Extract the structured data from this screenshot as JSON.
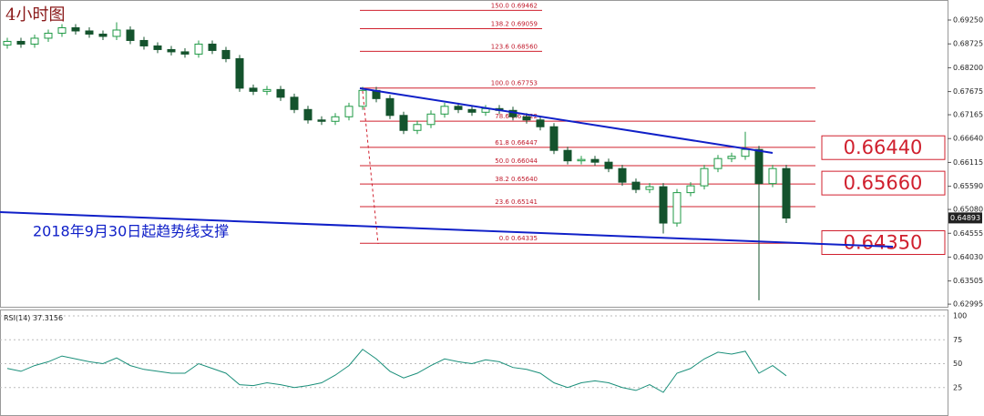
{
  "chart_data": {
    "type": "candlestick",
    "title": "4小时图",
    "annotation": "2018年9月30日起趋势线支撑",
    "open": [
      0.687,
      0.6878,
      0.6872,
      0.6885,
      0.6896,
      0.6908,
      0.6901,
      0.6894,
      0.6889,
      0.6903,
      0.688,
      0.6868,
      0.686,
      0.6855,
      0.685,
      0.6872,
      0.6858,
      0.684,
      0.6775,
      0.6768,
      0.6772,
      0.6755,
      0.6728,
      0.6705,
      0.6702,
      0.6712,
      0.6735,
      0.677,
      0.6752,
      0.6715,
      0.6682,
      0.6695,
      0.6718,
      0.6735,
      0.6728,
      0.6722,
      0.673,
      0.6726,
      0.6712,
      0.6705,
      0.669,
      0.6638,
      0.6615,
      0.6618,
      0.6612,
      0.6598,
      0.6568,
      0.6552,
      0.6558,
      0.6478,
      0.6545,
      0.656,
      0.6598,
      0.662,
      0.6625,
      0.664,
      0.6565,
      0.6598
    ],
    "high": [
      0.6886,
      0.6886,
      0.6893,
      0.6904,
      0.6916,
      0.6916,
      0.6909,
      0.6902,
      0.692,
      0.6911,
      0.6888,
      0.6876,
      0.6868,
      0.6863,
      0.688,
      0.688,
      0.6866,
      0.6848,
      0.6783,
      0.678,
      0.678,
      0.6763,
      0.6736,
      0.6713,
      0.672,
      0.6743,
      0.6778,
      0.6778,
      0.676,
      0.6723,
      0.6703,
      0.6726,
      0.6743,
      0.6743,
      0.6736,
      0.6738,
      0.6738,
      0.6734,
      0.672,
      0.6713,
      0.6698,
      0.6646,
      0.6626,
      0.6626,
      0.662,
      0.6606,
      0.6576,
      0.6566,
      0.6566,
      0.6553,
      0.6568,
      0.6606,
      0.6628,
      0.6633,
      0.6679,
      0.6648,
      0.6606,
      0.6606
    ],
    "low": [
      0.6862,
      0.6864,
      0.6864,
      0.6877,
      0.6888,
      0.6893,
      0.6886,
      0.6881,
      0.6881,
      0.6872,
      0.686,
      0.6852,
      0.6847,
      0.6842,
      0.6842,
      0.685,
      0.6832,
      0.6767,
      0.676,
      0.676,
      0.6747,
      0.672,
      0.6697,
      0.6694,
      0.6694,
      0.6704,
      0.6727,
      0.6744,
      0.6707,
      0.6674,
      0.6674,
      0.6687,
      0.671,
      0.672,
      0.6714,
      0.6714,
      0.6718,
      0.6704,
      0.6697,
      0.6682,
      0.663,
      0.6607,
      0.6607,
      0.6604,
      0.659,
      0.656,
      0.6544,
      0.6544,
      0.6455,
      0.647,
      0.6537,
      0.6552,
      0.659,
      0.6612,
      0.6617,
      0.6308,
      0.6557,
      0.6478
    ],
    "close": [
      0.6878,
      0.6872,
      0.6885,
      0.6896,
      0.6908,
      0.6901,
      0.6894,
      0.6889,
      0.6903,
      0.688,
      0.6868,
      0.686,
      0.6855,
      0.685,
      0.6872,
      0.6858,
      0.684,
      0.6775,
      0.6768,
      0.6772,
      0.6755,
      0.6728,
      0.6705,
      0.6702,
      0.6712,
      0.6735,
      0.677,
      0.6752,
      0.6715,
      0.6682,
      0.6695,
      0.6718,
      0.6735,
      0.6728,
      0.6722,
      0.673,
      0.6726,
      0.6712,
      0.6705,
      0.669,
      0.6638,
      0.6615,
      0.6618,
      0.6612,
      0.6598,
      0.6568,
      0.6552,
      0.6558,
      0.6478,
      0.6545,
      0.656,
      0.6598,
      0.662,
      0.6625,
      0.664,
      0.6565,
      0.6598,
      0.6489
    ],
    "up_color": "#1f9a45",
    "down_color": "#14532d",
    "ylim": [
      0.62957,
      0.69651
    ],
    "yticks": [
      {
        "value": 0.6925,
        "label": "0.69250"
      },
      {
        "value": 0.68725,
        "label": "0.68725"
      },
      {
        "value": 0.682,
        "label": "0.68200"
      },
      {
        "value": 0.67675,
        "label": "0.67675"
      },
      {
        "value": 0.67165,
        "label": "0.67165"
      },
      {
        "value": 0.6664,
        "label": "0.66640"
      },
      {
        "value": 0.66115,
        "label": "0.66115"
      },
      {
        "value": 0.6559,
        "label": "0.65590"
      },
      {
        "value": 0.6508,
        "label": "0.65080"
      },
      {
        "value": 0.64555,
        "label": "0.64555"
      },
      {
        "value": 0.6403,
        "label": "0.64030"
      },
      {
        "value": 0.63505,
        "label": "0.63505"
      },
      {
        "value": 0.62995,
        "label": "0.62995"
      }
    ],
    "current_price": {
      "value": 0.64893,
      "label": "0.64893"
    },
    "fib_color": "#d0202e",
    "fib_levels": [
      {
        "value": 0.69462,
        "label": "150.0  0.69462"
      },
      {
        "value": 0.69059,
        "label": "138.2  0.69059"
      },
      {
        "value": 0.6856,
        "label": "123.6  0.68560"
      },
      {
        "value": 0.67753,
        "label": "100.0  0.67753"
      },
      {
        "value": 0.67022,
        "label": "78.6  0.67022"
      },
      {
        "value": 0.66447,
        "label": "61.8  0.66447"
      },
      {
        "value": 0.66044,
        "label": "50.0  0.66044"
      },
      {
        "value": 0.6564,
        "label": "38.2  0.65640"
      },
      {
        "value": 0.65141,
        "label": "23.6  0.65141"
      },
      {
        "value": 0.64335,
        "label": "0.0  0.64335"
      }
    ],
    "price_labels": [
      {
        "value": 0.6644,
        "label": "0.66440"
      },
      {
        "value": 0.6566,
        "label": "0.65660"
      },
      {
        "value": 0.6435,
        "label": "0.64350"
      }
    ],
    "rsi": {
      "name": "RSI(14)",
      "color": "#1a8f7a",
      "ylim": [
        0,
        100
      ],
      "yticks": [
        25,
        50,
        75,
        100
      ],
      "values": [
        45,
        42,
        48,
        52,
        58,
        55,
        52,
        50,
        56,
        48,
        44,
        42,
        40,
        40,
        50,
        45,
        40,
        28,
        27,
        30,
        28,
        25,
        27,
        30,
        38,
        48,
        65,
        55,
        42,
        35,
        40,
        48,
        55,
        52,
        50,
        54,
        52,
        46,
        44,
        40,
        30,
        25,
        30,
        32,
        30,
        25,
        22,
        28,
        20,
        40,
        45,
        55,
        62,
        60,
        63,
        40,
        48,
        37.3156
      ]
    }
  }
}
